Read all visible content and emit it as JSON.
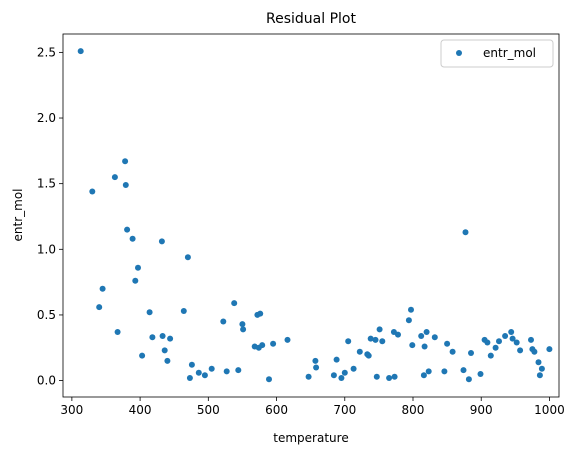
{
  "chart_data": {
    "type": "scatter",
    "title": "Residual Plot",
    "xlabel": "temperature",
    "ylabel": "entr_mol",
    "xlim": [
      287,
      1014
    ],
    "ylim": [
      -0.125,
      2.64
    ],
    "xticks": [
      300,
      400,
      500,
      600,
      700,
      800,
      900,
      1000
    ],
    "yticks": [
      0.0,
      0.5,
      1.0,
      1.5,
      2.0,
      2.5
    ],
    "ytick_labels": [
      "0.0",
      "0.5",
      "1.0",
      "1.5",
      "2.0",
      "2.5"
    ],
    "grid": false,
    "legend": "top-right",
    "series": [
      {
        "name": "entr_mol",
        "color": "#1f77b4",
        "points": [
          [
            313,
            2.51
          ],
          [
            330,
            1.44
          ],
          [
            340,
            0.56
          ],
          [
            345,
            0.7
          ],
          [
            363,
            1.55
          ],
          [
            367,
            0.37
          ],
          [
            378,
            1.67
          ],
          [
            379,
            1.49
          ],
          [
            381,
            1.15
          ],
          [
            389,
            1.08
          ],
          [
            393,
            0.76
          ],
          [
            397,
            0.86
          ],
          [
            403,
            0.19
          ],
          [
            414,
            0.52
          ],
          [
            418,
            0.33
          ],
          [
            432,
            1.06
          ],
          [
            433,
            0.34
          ],
          [
            436,
            0.23
          ],
          [
            440,
            0.15
          ],
          [
            444,
            0.32
          ],
          [
            464,
            0.53
          ],
          [
            470,
            0.94
          ],
          [
            473,
            0.02
          ],
          [
            476,
            0.12
          ],
          [
            486,
            0.06
          ],
          [
            495,
            0.04
          ],
          [
            505,
            0.09
          ],
          [
            522,
            0.45
          ],
          [
            527,
            0.07
          ],
          [
            538,
            0.59
          ],
          [
            544,
            0.08
          ],
          [
            550,
            0.43
          ],
          [
            551,
            0.39
          ],
          [
            568,
            0.26
          ],
          [
            572,
            0.5
          ],
          [
            574,
            0.25
          ],
          [
            576,
            0.51
          ],
          [
            579,
            0.27
          ],
          [
            589,
            0.01
          ],
          [
            595,
            0.28
          ],
          [
            616,
            0.31
          ],
          [
            647,
            0.03
          ],
          [
            657,
            0.15
          ],
          [
            658,
            0.1
          ],
          [
            684,
            0.04
          ],
          [
            688,
            0.16
          ],
          [
            695,
            0.02
          ],
          [
            700,
            0.06
          ],
          [
            705,
            0.3
          ],
          [
            713,
            0.09
          ],
          [
            722,
            0.22
          ],
          [
            733,
            0.2
          ],
          [
            735,
            0.19
          ],
          [
            738,
            0.32
          ],
          [
            745,
            0.31
          ],
          [
            747,
            0.03
          ],
          [
            751,
            0.39
          ],
          [
            755,
            0.3
          ],
          [
            765,
            0.02
          ],
          [
            772,
            0.37
          ],
          [
            773,
            0.03
          ],
          [
            778,
            0.35
          ],
          [
            794,
            0.46
          ],
          [
            797,
            0.54
          ],
          [
            799,
            0.27
          ],
          [
            812,
            0.34
          ],
          [
            816,
            0.04
          ],
          [
            817,
            0.26
          ],
          [
            820,
            0.37
          ],
          [
            823,
            0.07
          ],
          [
            832,
            0.33
          ],
          [
            846,
            0.07
          ],
          [
            850,
            0.28
          ],
          [
            858,
            0.22
          ],
          [
            874,
            0.08
          ],
          [
            877,
            1.13
          ],
          [
            882,
            0.01
          ],
          [
            885,
            0.21
          ],
          [
            899,
            0.05
          ],
          [
            905,
            0.31
          ],
          [
            909,
            0.29
          ],
          [
            914,
            0.19
          ],
          [
            921,
            0.25
          ],
          [
            926,
            0.3
          ],
          [
            935,
            0.34
          ],
          [
            944,
            0.37
          ],
          [
            946,
            0.32
          ],
          [
            952,
            0.29
          ],
          [
            957,
            0.23
          ],
          [
            973,
            0.31
          ],
          [
            975,
            0.24
          ],
          [
            978,
            0.22
          ],
          [
            984,
            0.14
          ],
          [
            986,
            0.04
          ],
          [
            989,
            0.09
          ],
          [
            1000,
            0.24
          ]
        ]
      }
    ]
  }
}
